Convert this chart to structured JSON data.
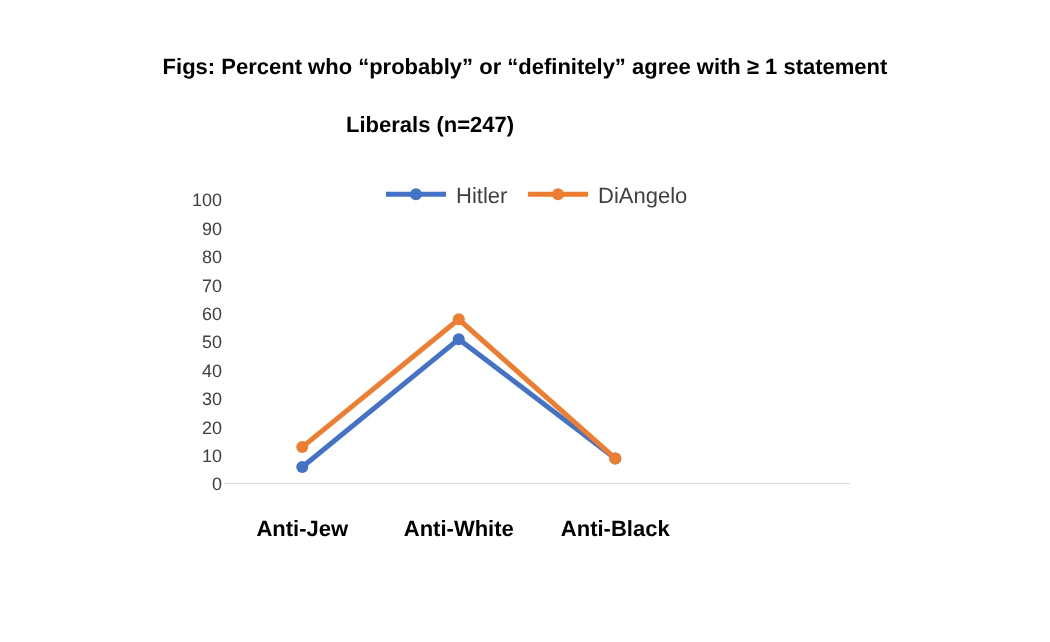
{
  "chart_data": {
    "type": "line",
    "title": "Figs: Percent who “probably” or “definitely” agree with ≥ 1 statement",
    "subtitle": "Liberals (n=247)",
    "categories": [
      "Anti-Jew",
      "Anti-White",
      "Anti-Black",
      null
    ],
    "series": [
      {
        "name": "Hitler",
        "color": "#4472c4",
        "values": [
          6,
          51,
          9,
          null
        ]
      },
      {
        "name": "DiAngelo",
        "color": "#ed7d31",
        "values": [
          13,
          58,
          9,
          null
        ]
      }
    ],
    "ylim": [
      0,
      100
    ],
    "yticks": [
      0,
      10,
      20,
      30,
      40,
      50,
      60,
      70,
      80,
      90,
      100
    ],
    "legend": "top",
    "marker": "circle",
    "line_style": "solid"
  }
}
